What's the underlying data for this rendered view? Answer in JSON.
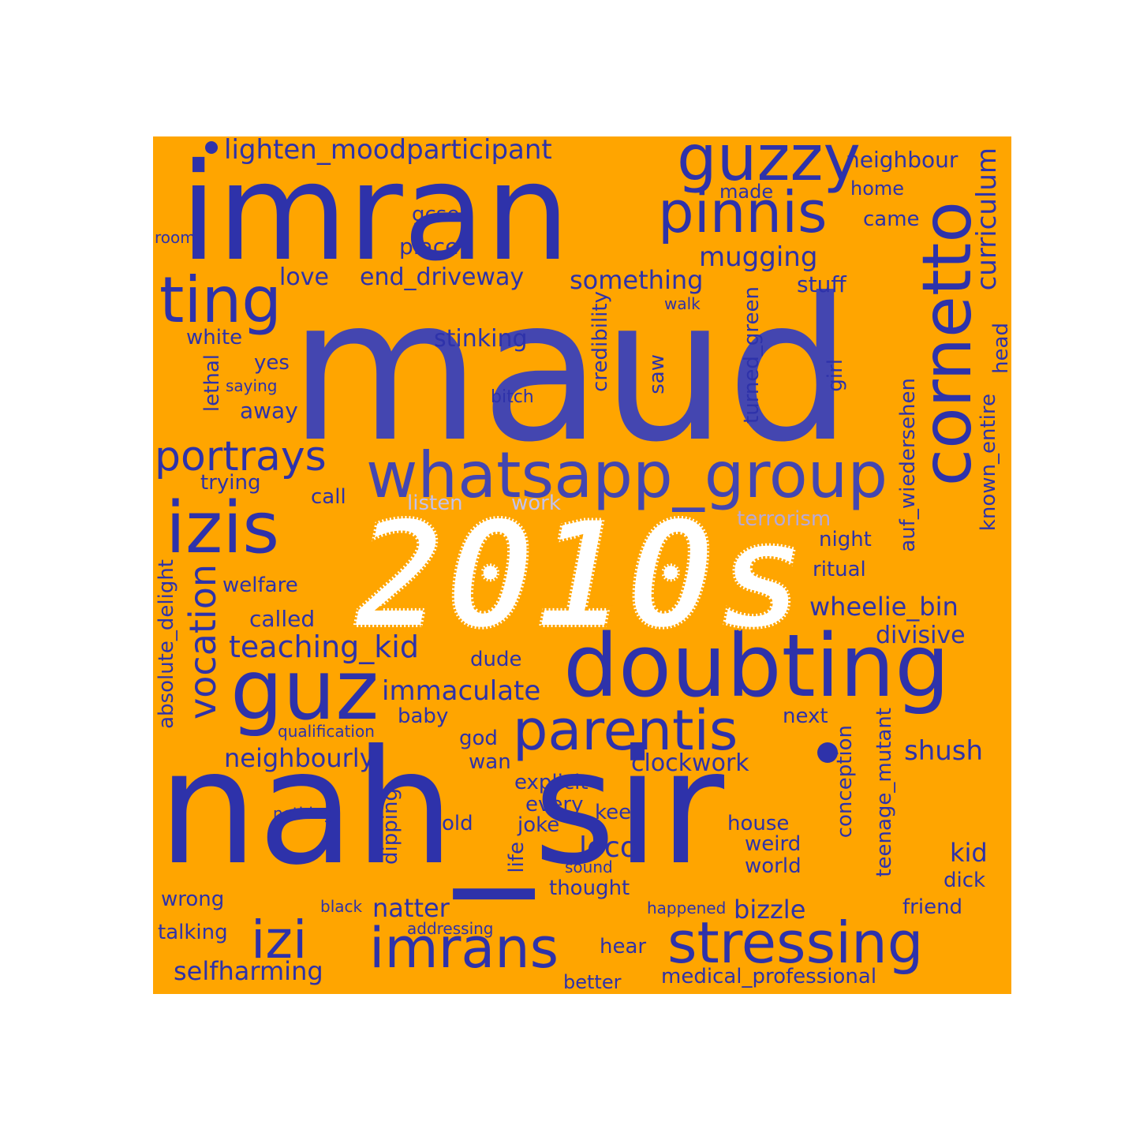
{
  "overlay_text": "2010s",
  "colors": {
    "background": "#ffa500",
    "word": "#2e32aa",
    "overlay_fill": "#ffffff",
    "overlay_outline": "#ffa500",
    "light_word": "#c2c2ef"
  },
  "words": {
    "maud": "maud",
    "imran": "imran",
    "nah_sir": "nah_sir",
    "doubting": "doubting",
    "whatsapp_group": "whatsapp_group",
    "cornetto": "cornetto",
    "guz": "guz",
    "izis": "izis",
    "guzzy": "guzzy",
    "pinnis": "pinnis",
    "ting": "ting",
    "parentis": "parentis",
    "stressing": "stressing",
    "imrans": "imrans",
    "izi": "izi",
    "portrays": "portrays",
    "vocation": "vocation",
    "teaching_kid": "teaching_kid",
    "lighten_moodparticipant": "lighten_moodparticipant",
    "neighbour": "neighbour",
    "curriculum": "curriculum",
    "mugging": "mugging",
    "love": "love",
    "end_driveway": "end_driveway",
    "something": "something",
    "made": "made",
    "home": "home",
    "gcse": "gcse",
    "came": "came",
    "place": "place",
    "room": "room",
    "stuff": "stuff",
    "walk": "walk",
    "white": "white",
    "stinking": "stinking",
    "head": "head",
    "yes": "yes",
    "saying": "saying",
    "lethal": "lethal",
    "credibility": "credibility",
    "saw": "saw",
    "turned_green": "turned_green",
    "girl": "girl",
    "bitch": "bitch",
    "away": "away",
    "auf_wiedersehen": "auf_wiedersehen",
    "known_entire": "known_entire",
    "trying": "trying",
    "call": "call",
    "listen": "listen",
    "work": "work",
    "terrorism": "terrorism",
    "night": "night",
    "ritual": "ritual",
    "welfare": "welfare",
    "absolute_delight": "absolute_delight",
    "wheelie_bin": "wheelie_bin",
    "called": "called",
    "divisive": "divisive",
    "dude": "dude",
    "immaculate": "immaculate",
    "baby": "baby",
    "next": "next",
    "qualification": "qualification",
    "god": "god",
    "neighbourly": "neighbourly",
    "shush": "shush",
    "wan": "wan",
    "clockwork": "clockwork",
    "conception": "conception",
    "explicit": "explicit",
    "teenage_mutant": "teenage_mutant",
    "every": "every",
    "nothing": "nothing",
    "keep": "keep",
    "dipping": "dipping",
    "old": "old",
    "joke": "joke",
    "house": "house",
    "loco": "loco",
    "weird": "weird",
    "kid": "kid",
    "life": "life",
    "sound": "sound",
    "world": "world",
    "dick": "dick",
    "wrong": "wrong",
    "thought": "thought",
    "black": "black",
    "natter": "natter",
    "happened": "happened",
    "friend": "friend",
    "bizzle": "bizzle",
    "addressing": "addressing",
    "talking": "talking",
    "hear": "hear",
    "selfharming": "selfharming",
    "better": "better",
    "medical_professional": "medical_professional"
  }
}
